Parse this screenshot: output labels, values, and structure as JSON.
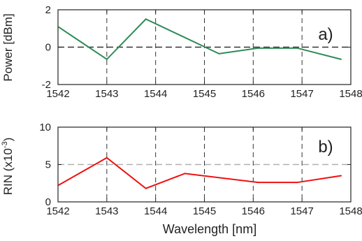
{
  "figure": {
    "xlabel": "Wavelength [nm]"
  },
  "chart_data": [
    {
      "type": "line",
      "panel_label": "a)",
      "ylabel": "Power [dBm]",
      "xlim": [
        1542,
        1548
      ],
      "ylim": [
        -2,
        2
      ],
      "xticks": [
        1542,
        1543,
        1544,
        1545,
        1546,
        1547,
        1548
      ],
      "yticks": [
        -2,
        0,
        2
      ],
      "xtick_labels": [
        "1542",
        "1543",
        "1544",
        "1545",
        "1546",
        "1547",
        "1548"
      ],
      "ytick_labels": [
        "-2",
        "0",
        "2"
      ],
      "grid": "vertical dashed at each x tick",
      "ref_line": {
        "y": 0,
        "style": "dashed",
        "color": "#333333"
      },
      "series": [
        {
          "color": "#2e8b57",
          "x": [
            1542.0,
            1543.0,
            1543.8,
            1545.3,
            1546.1,
            1546.9,
            1547.8
          ],
          "y": [
            1.1,
            -0.65,
            1.5,
            -0.35,
            -0.05,
            -0.05,
            -0.65
          ]
        }
      ]
    },
    {
      "type": "line",
      "panel_label": "b)",
      "ylabel_main": "RIN (x10",
      "ylabel_exp": "-3",
      "ylabel_end": ")",
      "xlim": [
        1542,
        1548
      ],
      "ylim": [
        0,
        10
      ],
      "xticks": [
        1542,
        1543,
        1544,
        1545,
        1546,
        1547,
        1548
      ],
      "yticks": [
        0,
        5,
        10
      ],
      "xtick_labels": [
        "1542",
        "1543",
        "1544",
        "1545",
        "1546",
        "1547",
        "1548"
      ],
      "ytick_labels": [
        "0",
        "5",
        "10"
      ],
      "grid": "vertical dashed at each x tick",
      "ref_line": {
        "y": 5,
        "style": "dashed",
        "color": "#b0b0b0"
      },
      "series": [
        {
          "color": "#ee1111",
          "x": [
            1542.0,
            1543.0,
            1543.8,
            1544.6,
            1546.1,
            1546.9,
            1547.8
          ],
          "y": [
            2.2,
            5.9,
            1.8,
            3.8,
            2.6,
            2.6,
            3.5
          ]
        }
      ]
    }
  ]
}
